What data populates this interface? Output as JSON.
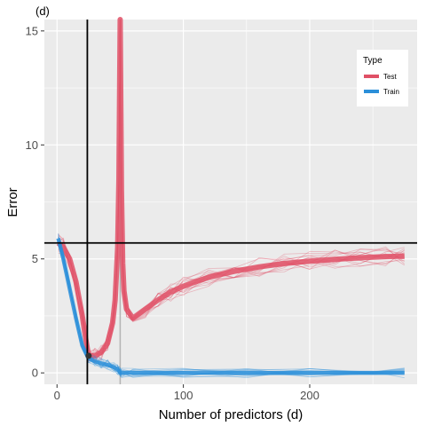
{
  "chart_data": {
    "type": "line",
    "panel_tag": "(d)",
    "title": "",
    "xlabel": "Number of predictors (d)",
    "ylabel": "Error",
    "xlim": [
      -10,
      285
    ],
    "ylim": [
      -0.5,
      15.5
    ],
    "x_ticks": [
      0,
      100,
      200
    ],
    "y_ticks": [
      0,
      5,
      10,
      15
    ],
    "grid": true,
    "legend": {
      "title": "Type",
      "position": "top-right",
      "entries": [
        "Test",
        "Train"
      ]
    },
    "colors": {
      "Test": "#e05066",
      "Train": "#2b8fd9",
      "panel_background": "#ebebeb",
      "grid": "#ffffff",
      "reference_line": "#000000",
      "interpolation_line": "#b3b3b3"
    },
    "series": [
      {
        "name": "Test",
        "x": [
          1,
          5,
          10,
          15,
          20,
          23,
          25,
          30,
          35,
          40,
          44,
          46,
          48,
          49,
          50,
          51,
          52,
          53,
          55,
          60,
          70,
          80,
          90,
          100,
          120,
          140,
          160,
          180,
          200,
          220,
          240,
          260,
          275
        ],
        "y": [
          5.7,
          5.5,
          5.0,
          4.0,
          2.5,
          1.4,
          0.75,
          0.75,
          0.9,
          1.3,
          2.2,
          3.2,
          5.5,
          8.5,
          15.5,
          8.0,
          4.8,
          3.6,
          2.8,
          2.4,
          2.8,
          3.2,
          3.55,
          3.8,
          4.2,
          4.45,
          4.65,
          4.8,
          4.9,
          4.98,
          5.05,
          5.1,
          5.12
        ]
      },
      {
        "name": "Train",
        "x": [
          1,
          5,
          10,
          15,
          20,
          23,
          25,
          30,
          35,
          40,
          45,
          48,
          49,
          50,
          51,
          60,
          100,
          150,
          200,
          250,
          275
        ],
        "y": [
          5.9,
          5.0,
          3.7,
          2.4,
          1.2,
          0.85,
          0.65,
          0.5,
          0.42,
          0.35,
          0.25,
          0.15,
          0.08,
          0.02,
          0.0,
          0.0,
          0.0,
          0.0,
          0.0,
          0.0,
          0.0
        ]
      }
    ],
    "reference_lines": {
      "vertical_x": 24,
      "horizontal_y": 5.7,
      "interpolation_threshold_x": 50
    },
    "marked_point": {
      "x": 25,
      "y": 0.75
    }
  }
}
